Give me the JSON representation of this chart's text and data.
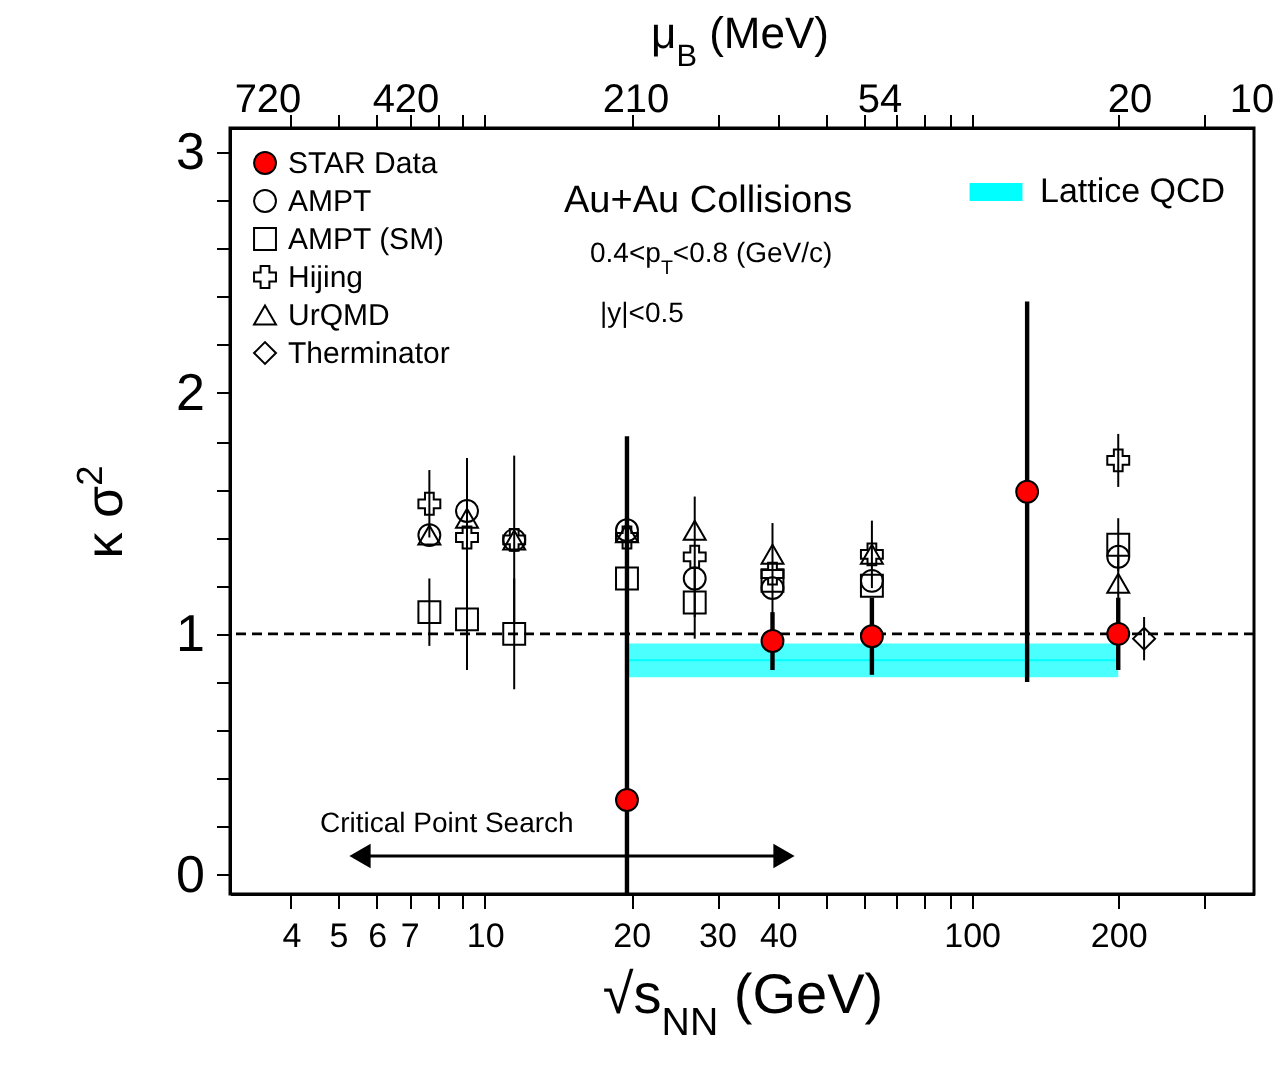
{
  "chart_data": {
    "type": "scatter",
    "xlabel": "√s$_{NN}$ (GeV)",
    "ylabel": "κ σ$^{2}$",
    "x2label": "μ$_{B}$ (MeV)",
    "x": [
      7.7,
      9.2,
      11.5,
      19.6,
      27,
      39,
      62.4,
      200
    ],
    "log": "x",
    "xlim": [
      3,
      380
    ],
    "xticks": [
      4,
      5,
      6,
      7,
      {
        "value": 8,
        "label": null
      },
      {
        "value": 9,
        "label": null
      },
      10,
      20,
      30,
      40,
      {
        "value": 50,
        "label": null
      },
      {
        "value": 60,
        "label": null
      },
      {
        "value": 70,
        "label": null
      },
      {
        "value": 80,
        "label": null
      },
      {
        "value": 90,
        "label": null
      },
      100,
      200,
      {
        "value": 300,
        "label": null
      }
    ],
    "ylim": [
      -0.08,
      3.1
    ],
    "yticks": [
      0,
      {
        "value": 0.2,
        "label": null
      },
      {
        "value": 0.4,
        "label": null
      },
      {
        "value": 0.6,
        "label": null
      },
      {
        "value": 0.8,
        "label": null
      },
      1,
      {
        "value": 1.2,
        "label": null
      },
      {
        "value": 1.4,
        "label": null
      },
      {
        "value": 1.6,
        "label": null
      },
      {
        "value": 1.8,
        "label": null
      },
      2,
      {
        "value": 2.2,
        "label": null
      },
      {
        "value": 2.4,
        "label": null
      },
      {
        "value": 2.6,
        "label": null
      },
      {
        "value": 2.8,
        "label": null
      },
      3
    ],
    "grid": false,
    "legend": "top left",
    "series": [
      {
        "name": "Lattice QCD",
        "type": "line",
        "color": "#00ffff",
        "x": [
          19.6,
          200
        ],
        "values": [
          0.89,
          0.89
        ],
        "lower": [
          0.82,
          0.82
        ],
        "upper": [
          0.96,
          0.96
        ]
      },
      {
        "name": "STAR Data",
        "marker": "circle",
        "color": "#ff0000",
        "x": [
          19.6,
          39,
          62.4,
          130,
          200
        ],
        "values": [
          0.31,
          0.97,
          0.99,
          1.59,
          1.0
        ],
        "errors": [
          [
            -0.08,
            1.82
          ],
          0.12,
          0.16,
          0.79,
          0.15
        ]
      },
      {
        "name": "AMPT",
        "marker": "circle",
        "color": "#000000",
        "values": [
          1.41,
          1.51,
          1.39,
          1.43,
          1.23,
          1.19,
          1.22,
          1.32
        ]
      },
      {
        "name": "AMPT (SM)",
        "marker": "square",
        "color": "#000000",
        "values": [
          1.09,
          1.06,
          1.0,
          1.23,
          1.13,
          1.22,
          1.2,
          1.37
        ],
        "errors": [
          0.14,
          0.21,
          0.23,
          null,
          0.15,
          null,
          null,
          0.11
        ]
      },
      {
        "name": "Hijing",
        "marker": "cross",
        "color": "#000000",
        "values": [
          1.54,
          1.4,
          1.39,
          1.4,
          1.32,
          1.25,
          1.33,
          1.72
        ],
        "errors": [
          0.14,
          0.33,
          0.35,
          null,
          0.25,
          0.21,
          0.14,
          0.11
        ]
      },
      {
        "name": "UrQMD",
        "marker": "triangle",
        "color": "#000000",
        "values": [
          1.41,
          1.48,
          1.39,
          1.42,
          1.43,
          1.33,
          1.33,
          1.21
        ],
        "errors": [
          null,
          null,
          null,
          null,
          null,
          null,
          null,
          0.11
        ]
      },
      {
        "name": "Therminator",
        "marker": "diamond",
        "color": "#000000",
        "x": [
          226
        ],
        "values": [
          0.98
        ],
        "errors": [
          0.09
        ]
      }
    ],
    "ref_lines": [
      {
        "axis": "y",
        "value": 1,
        "line_style": "dashed",
        "color": "#000000"
      }
    ],
    "annotations": [
      "Au+Au Collisions",
      "0.4<p$_{T}$<0.8 (GeV/c)",
      "|y|<0.5",
      "Critical Point Search",
      "720",
      "420",
      "210",
      "54",
      "20",
      "10"
    ]
  }
}
